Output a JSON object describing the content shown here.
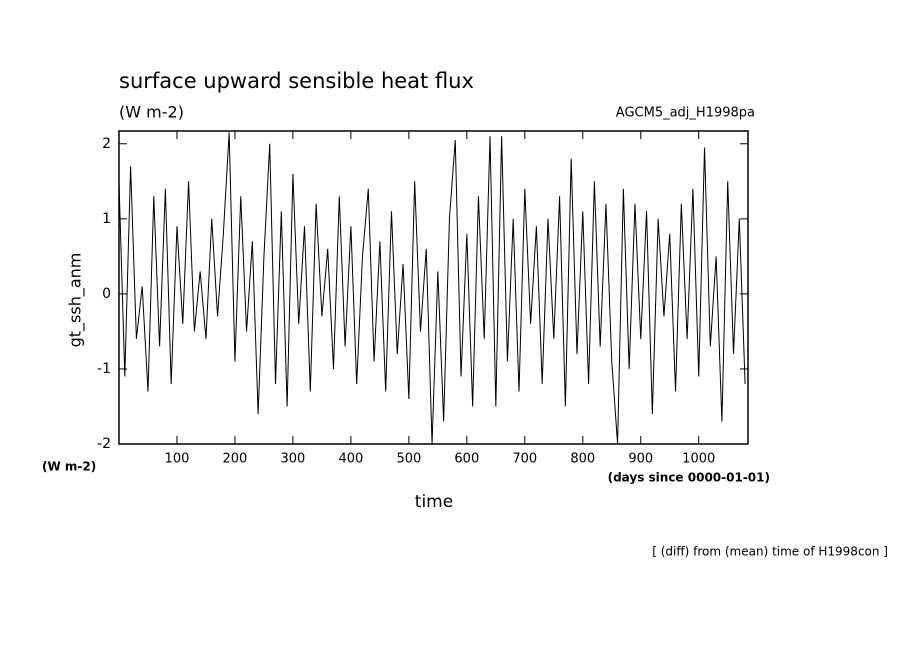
{
  "chart_data": {
    "type": "line",
    "title": "surface upward sensible heat flux",
    "subtitle": "(W m-2)",
    "dataset": "AGCM5_adj_H1998pa",
    "ylabel": "gt_ssh_anm",
    "yunits": "(W m-2)",
    "xlabel": "time",
    "xunits": "(days since 0000-01-01)",
    "note": "[ (diff) from (mean) time of H1998con ]",
    "xlim": [
      0,
      1085
    ],
    "ylim": [
      -2,
      2.17
    ],
    "xticks": [
      100,
      200,
      300,
      400,
      500,
      600,
      700,
      800,
      900,
      1000
    ],
    "yticks": [
      -2,
      -1,
      0,
      1,
      2
    ],
    "series": [
      {
        "color": "#000000",
        "x": [
          0,
          10,
          20,
          30,
          40,
          50,
          60,
          70,
          80,
          90,
          100,
          110,
          120,
          130,
          140,
          150,
          160,
          170,
          180,
          190,
          200,
          210,
          220,
          230,
          240,
          250,
          260,
          270,
          280,
          290,
          300,
          310,
          320,
          330,
          340,
          350,
          360,
          370,
          380,
          390,
          400,
          410,
          420,
          430,
          440,
          450,
          460,
          470,
          480,
          490,
          500,
          510,
          520,
          530,
          540,
          550,
          560,
          570,
          580,
          590,
          600,
          610,
          620,
          630,
          640,
          650,
          660,
          670,
          680,
          690,
          700,
          710,
          720,
          730,
          740,
          750,
          760,
          770,
          780,
          790,
          800,
          810,
          820,
          830,
          840,
          850,
          860,
          870,
          880,
          890,
          900,
          910,
          920,
          930,
          940,
          950,
          960,
          970,
          980,
          990,
          1000,
          1010,
          1020,
          1030,
          1040,
          1050,
          1060,
          1070,
          1080
        ],
        "values": [
          1.5,
          -1.1,
          1.7,
          -0.6,
          0.1,
          -1.3,
          1.3,
          -0.7,
          1.4,
          -1.2,
          0.9,
          -0.4,
          1.5,
          -0.5,
          0.3,
          -0.6,
          1.0,
          -0.3,
          0.8,
          2.15,
          -0.9,
          1.3,
          -0.5,
          0.7,
          -1.6,
          0.5,
          2.0,
          -1.2,
          1.1,
          -1.5,
          1.6,
          -0.4,
          0.9,
          -1.3,
          1.2,
          -0.3,
          0.6,
          -1.0,
          1.3,
          -0.7,
          0.9,
          -1.2,
          0.5,
          1.4,
          -0.9,
          0.7,
          -1.3,
          1.1,
          -0.8,
          0.4,
          -1.4,
          1.5,
          -0.5,
          0.6,
          -2.0,
          0.3,
          -1.7,
          1.0,
          2.05,
          -1.1,
          0.8,
          -1.5,
          1.3,
          -0.6,
          2.1,
          -1.5,
          2.1,
          -0.9,
          1.0,
          -1.3,
          1.4,
          -0.4,
          0.9,
          -1.2,
          1.0,
          -0.6,
          1.3,
          -1.5,
          1.8,
          -0.8,
          1.1,
          -1.2,
          1.5,
          -0.7,
          1.2,
          -0.9,
          -2.0,
          1.4,
          -1.0,
          1.2,
          -0.6,
          1.1,
          -1.6,
          1.0,
          -0.3,
          0.8,
          -1.3,
          1.2,
          -0.6,
          1.4,
          -1.1,
          1.95,
          -0.7,
          0.5,
          -1.7,
          1.5,
          -0.8,
          1.0,
          -1.2
        ]
      }
    ]
  }
}
